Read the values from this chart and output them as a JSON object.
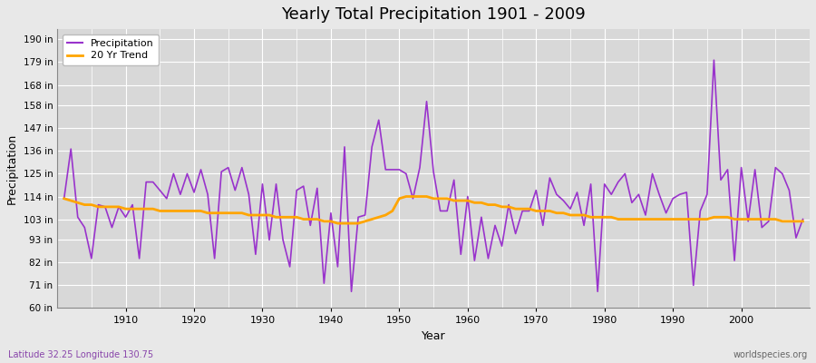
{
  "title": "Yearly Total Precipitation 1901 - 2009",
  "xlabel": "Year",
  "ylabel": "Precipitation",
  "footnote_left": "Latitude 32.25 Longitude 130.75",
  "footnote_right": "worldspecies.org",
  "legend_labels": [
    "Precipitation",
    "20 Yr Trend"
  ],
  "precip_color": "#9933CC",
  "trend_color": "#FFA500",
  "bg_color": "#E8E8E8",
  "plot_bg_color": "#D8D8D8",
  "ylim": [
    60,
    195
  ],
  "yticks": [
    60,
    71,
    82,
    93,
    103,
    114,
    125,
    136,
    147,
    158,
    168,
    179,
    190
  ],
  "ytick_labels": [
    "60 in",
    "71 in",
    "82 in",
    "93 in",
    "103 in",
    "114 in",
    "125 in",
    "136 in",
    "147 in",
    "158 in",
    "168 in",
    "179 in",
    "190 in"
  ],
  "xticks": [
    1910,
    1920,
    1930,
    1940,
    1950,
    1960,
    1970,
    1980,
    1990,
    2000
  ],
  "xlim": [
    1900,
    2010
  ],
  "years": [
    1901,
    1902,
    1903,
    1904,
    1905,
    1906,
    1907,
    1908,
    1909,
    1910,
    1911,
    1912,
    1913,
    1914,
    1915,
    1916,
    1917,
    1918,
    1919,
    1920,
    1921,
    1922,
    1923,
    1924,
    1925,
    1926,
    1927,
    1928,
    1929,
    1930,
    1931,
    1932,
    1933,
    1934,
    1935,
    1936,
    1937,
    1938,
    1939,
    1940,
    1941,
    1942,
    1943,
    1944,
    1945,
    1946,
    1947,
    1948,
    1949,
    1950,
    1951,
    1952,
    1953,
    1954,
    1955,
    1956,
    1957,
    1958,
    1959,
    1960,
    1961,
    1962,
    1963,
    1964,
    1965,
    1966,
    1967,
    1968,
    1969,
    1970,
    1971,
    1972,
    1973,
    1974,
    1975,
    1976,
    1977,
    1978,
    1979,
    1980,
    1981,
    1982,
    1983,
    1984,
    1985,
    1986,
    1987,
    1988,
    1989,
    1990,
    1991,
    1992,
    1993,
    1994,
    1995,
    1996,
    1997,
    1998,
    1999,
    2000,
    2001,
    2002,
    2003,
    2004,
    2005,
    2006,
    2007,
    2008,
    2009
  ],
  "precip": [
    113,
    137,
    104,
    99,
    84,
    110,
    109,
    99,
    109,
    104,
    110,
    84,
    121,
    121,
    117,
    113,
    125,
    115,
    125,
    116,
    127,
    115,
    84,
    126,
    128,
    117,
    128,
    115,
    86,
    120,
    93,
    120,
    93,
    80,
    117,
    119,
    100,
    118,
    72,
    106,
    80,
    138,
    68,
    104,
    105,
    138,
    151,
    127,
    127,
    127,
    125,
    113,
    128,
    160,
    126,
    107,
    107,
    122,
    86,
    114,
    83,
    104,
    84,
    100,
    90,
    110,
    96,
    107,
    107,
    117,
    100,
    123,
    115,
    112,
    108,
    116,
    100,
    120,
    68,
    120,
    115,
    121,
    125,
    111,
    115,
    105,
    125,
    115,
    106,
    113,
    115,
    116,
    71,
    107,
    115,
    180,
    122,
    127,
    83,
    128,
    102,
    127,
    99,
    102,
    128,
    125,
    117,
    94,
    103
  ],
  "trend": [
    113,
    112,
    111,
    110,
    110,
    109,
    109,
    109,
    109,
    108,
    108,
    108,
    108,
    108,
    107,
    107,
    107,
    107,
    107,
    107,
    107,
    106,
    106,
    106,
    106,
    106,
    106,
    105,
    105,
    105,
    105,
    104,
    104,
    104,
    104,
    103,
    103,
    103,
    102,
    102,
    101,
    101,
    101,
    101,
    102,
    103,
    104,
    105,
    107,
    113,
    114,
    114,
    114,
    114,
    113,
    113,
    113,
    112,
    112,
    112,
    111,
    111,
    110,
    110,
    109,
    109,
    108,
    108,
    108,
    107,
    107,
    107,
    106,
    106,
    105,
    105,
    105,
    104,
    104,
    104,
    104,
    103,
    103,
    103,
    103,
    103,
    103,
    103,
    103,
    103,
    103,
    103,
    103,
    103,
    103,
    104,
    104,
    104,
    103,
    103,
    103,
    103,
    103,
    103,
    103,
    102,
    102,
    102,
    102
  ]
}
